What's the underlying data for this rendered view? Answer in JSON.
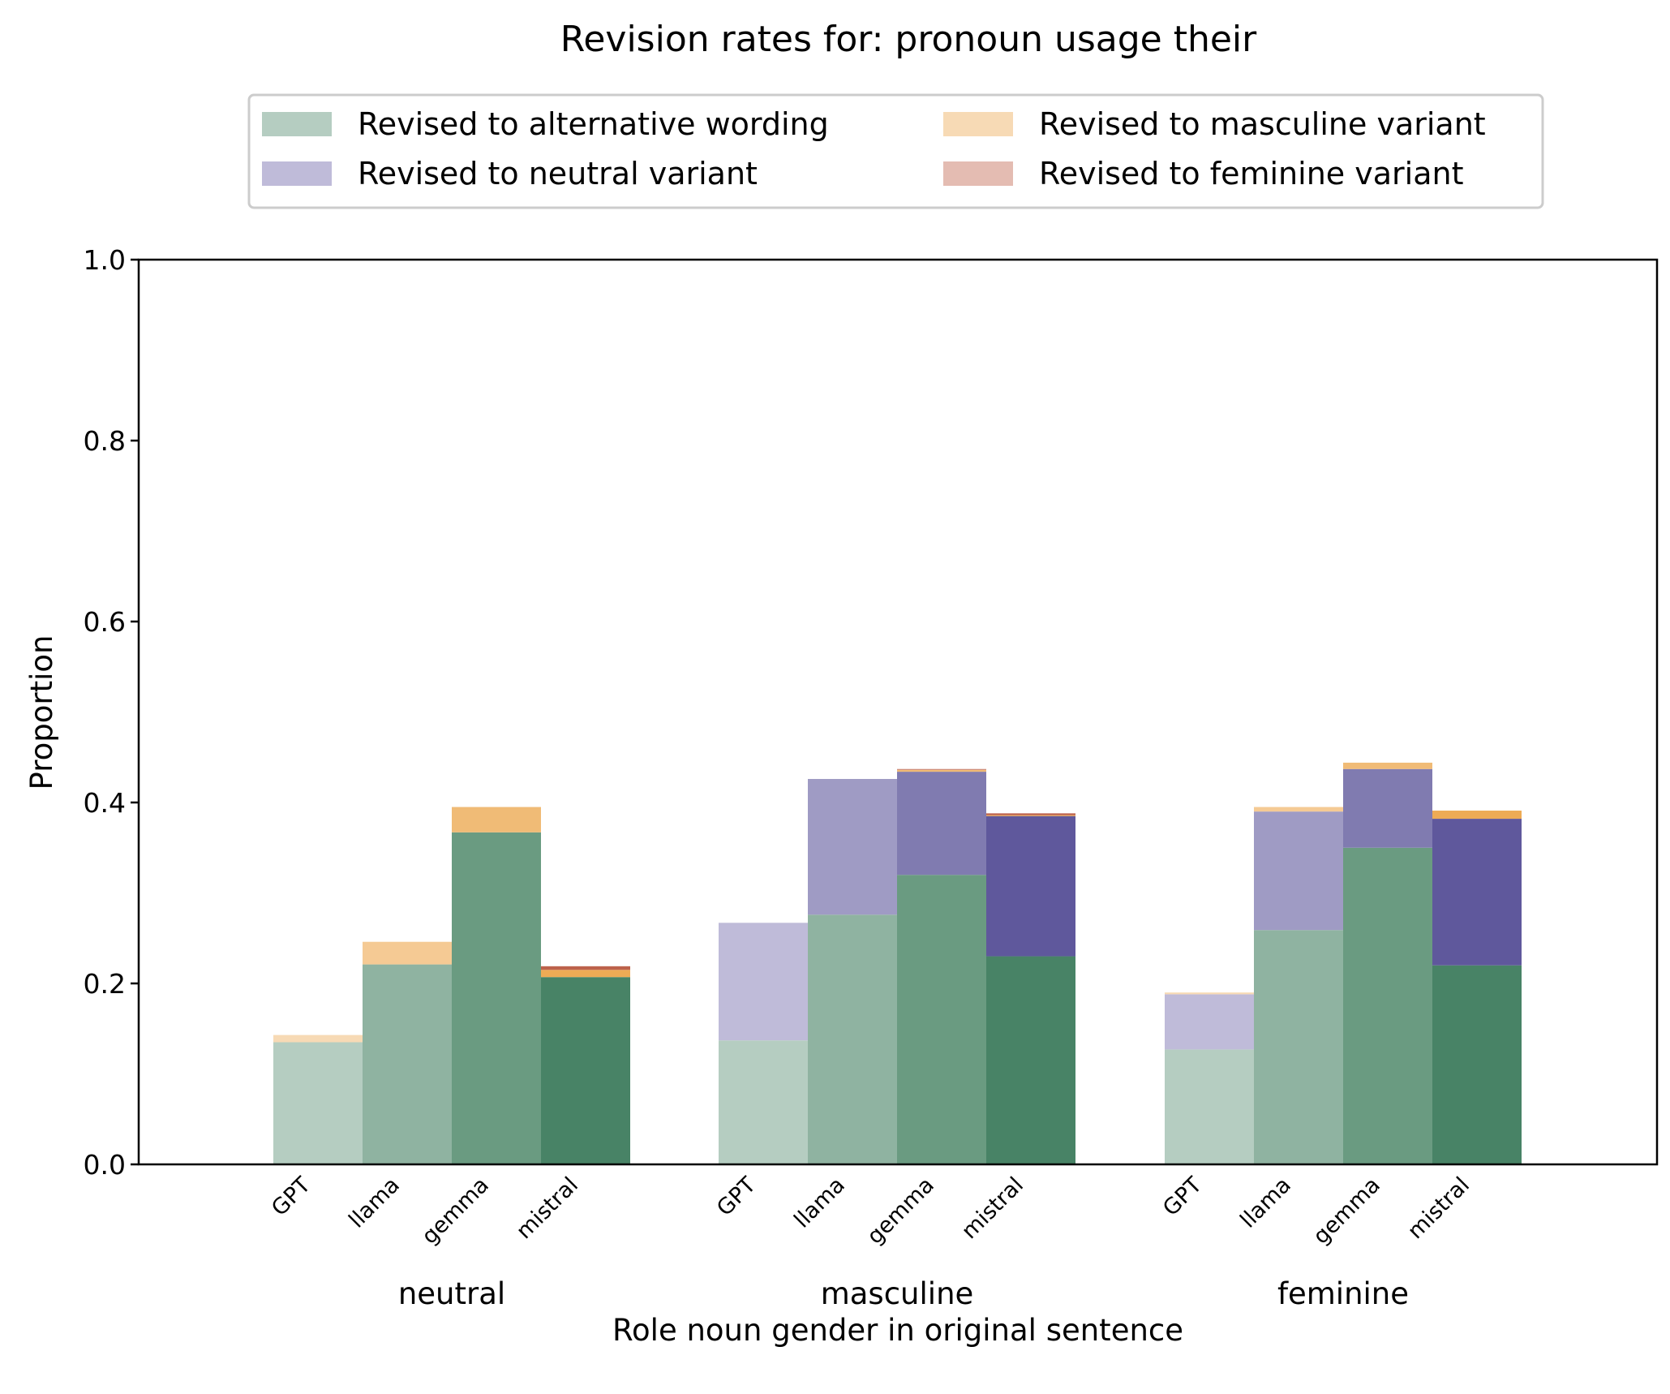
{
  "chart_data": {
    "type": "bar",
    "stacked": true,
    "title": "Revision rates for: pronoun usage their",
    "xlabel": "Role noun gender in original sentence",
    "ylabel": "Proportion",
    "ylim": [
      0,
      1.0
    ],
    "yticks": [
      "0.0",
      "0.2",
      "0.4",
      "0.6",
      "0.8",
      "1.0"
    ],
    "groups": [
      "neutral",
      "masculine",
      "feminine"
    ],
    "models": [
      "GPT",
      "llama",
      "gemma",
      "mistral"
    ],
    "legend": {
      "placement": "top-center",
      "entries": [
        {
          "key": "alternative",
          "label": "Revised to alternative wording",
          "color": "#b5cdc1"
        },
        {
          "key": "neutral",
          "label": "Revised to neutral variant",
          "color": "#bfbbd9"
        },
        {
          "key": "masculine",
          "label": "Revised to masculine variant",
          "color": "#f7dab5"
        },
        {
          "key": "feminine",
          "label": "Revised to feminine variant",
          "color": "#e4bcb2"
        }
      ]
    },
    "model_colors": {
      "alternative": [
        "#b5cdc1",
        "#8fb3a1",
        "#6a9b81",
        "#488366"
      ],
      "neutral": [
        "#bfbbd9",
        "#9f9bc4",
        "#807bb0",
        "#5f589c"
      ],
      "masculine": [
        "#f7dab5",
        "#f5ca94",
        "#f0bb76",
        "#eeab55"
      ],
      "feminine": [
        "#e4bcb2",
        "#d59d8d",
        "#c97f6c",
        "#bd624b"
      ]
    },
    "series": [
      {
        "name": "Revised to alternative wording",
        "values": [
          [
            0.135,
            0.221,
            0.367,
            0.207
          ],
          [
            0.137,
            0.276,
            0.32,
            0.23
          ],
          [
            0.127,
            0.259,
            0.35,
            0.22
          ]
        ]
      },
      {
        "name": "Revised to neutral variant",
        "values": [
          [
            0.0,
            0.0,
            0.0,
            0.0
          ],
          [
            0.13,
            0.15,
            0.114,
            0.155
          ],
          [
            0.061,
            0.131,
            0.087,
            0.162
          ]
        ]
      },
      {
        "name": "Revised to masculine variant",
        "values": [
          [
            0.008,
            0.025,
            0.028,
            0.008
          ],
          [
            0.0,
            0.0,
            0.002,
            0.001
          ],
          [
            0.002,
            0.005,
            0.007,
            0.009
          ]
        ]
      },
      {
        "name": "Revised to feminine variant",
        "values": [
          [
            0.0,
            0.0,
            0.0,
            0.004
          ],
          [
            0.0,
            0.0,
            0.001,
            0.002
          ],
          [
            0.0,
            0.0,
            0.0,
            0.0
          ]
        ]
      }
    ],
    "grid": false
  }
}
